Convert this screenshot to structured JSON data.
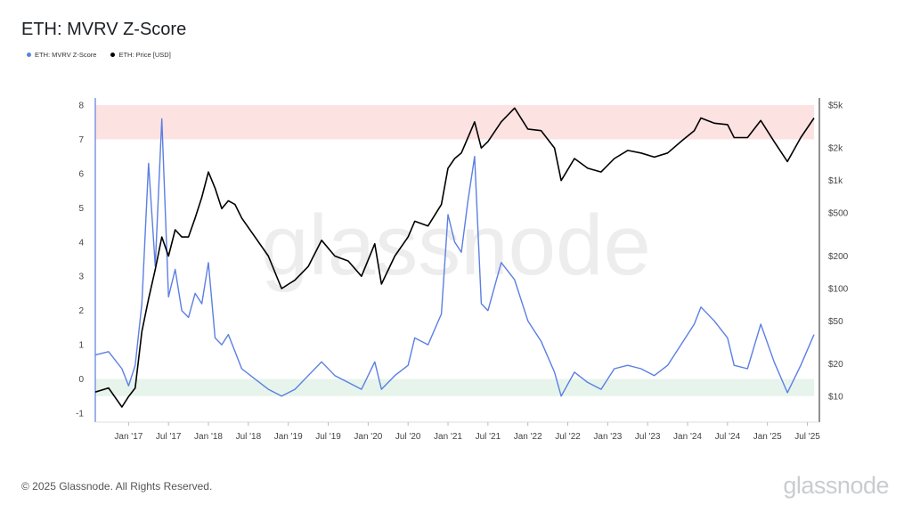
{
  "header": {
    "title": "ETH: MVRV Z-Score"
  },
  "legend": [
    {
      "label": "ETH: MVRV Z-Score",
      "color": "#5b7fe3"
    },
    {
      "label": "ETH: Price [USD]",
      "color": "#000000"
    }
  ],
  "watermark": "glassnode",
  "footer": {
    "copyright": "© 2025 Glassnode. All Rights Reserved.",
    "brand": "glassnode"
  },
  "chart_data": {
    "type": "line",
    "title": "ETH: MVRV Z-Score",
    "x_ticks": [
      "Jan '17",
      "Jul '17",
      "Jan '18",
      "Jul '18",
      "Jan '19",
      "Jul '19",
      "Jan '20",
      "Jul '20",
      "Jan '21",
      "Jul '21",
      "Jan '22",
      "Jul '22",
      "Jan '23",
      "Jul '23",
      "Jan '24",
      "Jul '24",
      "Jan '25",
      "Jul '25"
    ],
    "x_range": [
      "2016-08",
      "2025-08"
    ],
    "y_left": {
      "ticks": [
        "8",
        "7",
        "6",
        "5",
        "4",
        "3",
        "2",
        "1",
        "0",
        "-1"
      ],
      "range": [
        -1,
        8
      ]
    },
    "y_right": {
      "scale": "log",
      "ticks": [
        "$5k",
        "$2k",
        "$1k",
        "$500",
        "$200",
        "$100",
        "$50",
        "$20",
        "$10"
      ],
      "range": [
        7,
        5000
      ]
    },
    "zones": [
      {
        "name": "high",
        "from": 7,
        "to": 8,
        "color": "#fde2e2"
      },
      {
        "name": "low",
        "from": -0.5,
        "to": 0,
        "color": "#e6f4ec"
      }
    ],
    "series": [
      {
        "name": "ETH: MVRV Z-Score",
        "axis": "left",
        "color": "#5b7fe3",
        "x": [
          "2016-08",
          "2016-10",
          "2016-12",
          "2017-01",
          "2017-02",
          "2017-03",
          "2017-04",
          "2017-05",
          "2017-06",
          "2017-07",
          "2017-08",
          "2017-09",
          "2017-10",
          "2017-11",
          "2017-12",
          "2018-01",
          "2018-02",
          "2018-03",
          "2018-04",
          "2018-05",
          "2018-06",
          "2018-08",
          "2018-10",
          "2018-12",
          "2019-02",
          "2019-04",
          "2019-06",
          "2019-08",
          "2019-10",
          "2019-12",
          "2020-02",
          "2020-03",
          "2020-05",
          "2020-07",
          "2020-08",
          "2020-10",
          "2020-12",
          "2021-01",
          "2021-02",
          "2021-03",
          "2021-04",
          "2021-05",
          "2021-06",
          "2021-07",
          "2021-09",
          "2021-11",
          "2022-01",
          "2022-03",
          "2022-05",
          "2022-06",
          "2022-08",
          "2022-10",
          "2022-12",
          "2023-02",
          "2023-04",
          "2023-06",
          "2023-08",
          "2023-10",
          "2023-12",
          "2024-02",
          "2024-03",
          "2024-05",
          "2024-07",
          "2024-08",
          "2024-10",
          "2024-12",
          "2025-02",
          "2025-04",
          "2025-06",
          "2025-08"
        ],
        "values": [
          0.7,
          0.8,
          0.3,
          -0.2,
          0.4,
          2.2,
          6.3,
          3.3,
          7.6,
          2.4,
          3.2,
          2.0,
          1.8,
          2.5,
          2.2,
          3.4,
          1.2,
          1.0,
          1.3,
          0.8,
          0.3,
          0.0,
          -0.3,
          -0.5,
          -0.3,
          0.1,
          0.5,
          0.1,
          -0.1,
          -0.3,
          0.5,
          -0.3,
          0.1,
          0.4,
          1.2,
          1.0,
          1.9,
          4.8,
          4.0,
          3.7,
          5.2,
          6.5,
          2.2,
          2.0,
          3.4,
          2.9,
          1.7,
          1.1,
          0.2,
          -0.5,
          0.2,
          -0.1,
          -0.3,
          0.3,
          0.4,
          0.3,
          0.1,
          0.4,
          1.0,
          1.6,
          2.1,
          1.7,
          1.2,
          0.4,
          0.3,
          1.6,
          0.5,
          -0.4,
          0.4,
          1.3
        ]
      },
      {
        "name": "ETH: Price [USD]",
        "axis": "right",
        "color": "#000000",
        "x": [
          "2016-08",
          "2016-10",
          "2016-12",
          "2017-01",
          "2017-02",
          "2017-03",
          "2017-04",
          "2017-05",
          "2017-06",
          "2017-07",
          "2017-08",
          "2017-09",
          "2017-10",
          "2017-11",
          "2017-12",
          "2018-01",
          "2018-02",
          "2018-03",
          "2018-04",
          "2018-05",
          "2018-06",
          "2018-08",
          "2018-10",
          "2018-12",
          "2019-02",
          "2019-04",
          "2019-06",
          "2019-08",
          "2019-10",
          "2019-12",
          "2020-02",
          "2020-03",
          "2020-05",
          "2020-07",
          "2020-08",
          "2020-10",
          "2020-12",
          "2021-01",
          "2021-02",
          "2021-03",
          "2021-04",
          "2021-05",
          "2021-06",
          "2021-07",
          "2021-09",
          "2021-11",
          "2022-01",
          "2022-03",
          "2022-05",
          "2022-06",
          "2022-08",
          "2022-10",
          "2022-12",
          "2023-02",
          "2023-04",
          "2023-06",
          "2023-08",
          "2023-10",
          "2023-12",
          "2024-02",
          "2024-03",
          "2024-05",
          "2024-07",
          "2024-08",
          "2024-10",
          "2024-12",
          "2025-02",
          "2025-04",
          "2025-06",
          "2025-08"
        ],
        "values": [
          11,
          12,
          8,
          10,
          12,
          40,
          80,
          150,
          300,
          200,
          350,
          300,
          300,
          450,
          700,
          1200,
          850,
          550,
          650,
          600,
          450,
          300,
          200,
          100,
          120,
          160,
          280,
          200,
          180,
          130,
          260,
          110,
          200,
          300,
          420,
          380,
          600,
          1300,
          1600,
          1800,
          2500,
          3500,
          2000,
          2300,
          3500,
          4700,
          3000,
          2900,
          2000,
          1000,
          1600,
          1300,
          1200,
          1600,
          1900,
          1800,
          1650,
          1800,
          2300,
          2900,
          3800,
          3400,
          3300,
          2500,
          2500,
          3600,
          2300,
          1500,
          2500,
          3800
        ]
      }
    ]
  }
}
